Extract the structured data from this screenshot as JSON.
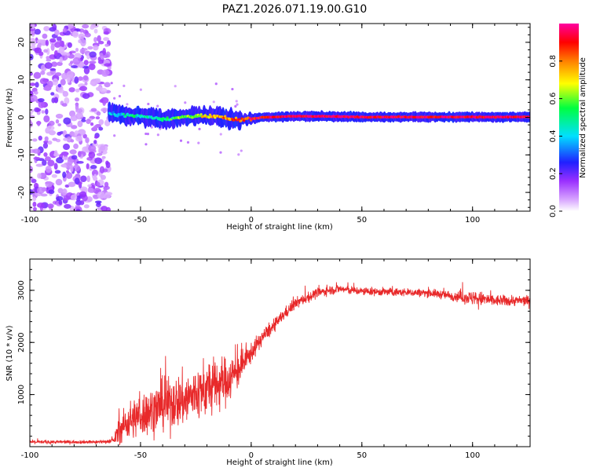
{
  "title": "PAZ1.2026.071.19.00.G10",
  "chart_data": [
    {
      "type": "heatmap",
      "title": "PAZ1.2026.071.19.00.G10",
      "xlabel": "Height of straight line (km)",
      "ylabel": "Frequency (Hz)",
      "xlim": [
        -100,
        126
      ],
      "ylim": [
        -25,
        25
      ],
      "x_ticks": [
        -100,
        -50,
        0,
        50,
        100
      ],
      "x_tick_labels": [
        "-100",
        "-50",
        "0",
        "50",
        "100"
      ],
      "y_ticks": [
        -20,
        -10,
        0,
        10,
        20
      ],
      "y_tick_labels": [
        "-20",
        "-10",
        "0",
        "10",
        "20"
      ],
      "colorbar": {
        "label": "Normalized spectral amplitude",
        "range": [
          0,
          1
        ],
        "ticks": [
          0.0,
          0.2,
          0.4,
          0.6,
          0.8
        ],
        "tick_labels": [
          "0.0",
          "0.2",
          "0.4",
          "0.6",
          "0.8"
        ],
        "colors": [
          "#ffffff",
          "#d9a8ff",
          "#9b30ff",
          "#2020ff",
          "#00e0ff",
          "#00ff40",
          "#ffff00",
          "#ff8000",
          "#ff0000",
          "#ff00a0"
        ]
      },
      "noise_region_x": [
        -100,
        -64
      ],
      "ridge": {
        "x": [
          -64,
          -60,
          -55,
          -50,
          -45,
          -40,
          -35,
          -30,
          -25,
          -20,
          -15,
          -10,
          -5,
          0,
          5,
          10,
          15,
          20,
          25,
          30,
          40,
          50,
          60,
          70,
          80,
          90,
          100,
          110,
          120,
          126
        ],
        "freq": [
          1.0,
          0.8,
          0.5,
          0.3,
          0.0,
          -0.4,
          -0.3,
          0.2,
          0.3,
          0.2,
          0.2,
          -0.5,
          -0.6,
          -0.4,
          0.0,
          0.1,
          0.2,
          0.3,
          0.3,
          0.3,
          0.2,
          0.1,
          0.1,
          0.1,
          0.1,
          0.1,
          0.1,
          0.1,
          0.1,
          0.1
        ],
        "amplitude": [
          0.35,
          0.4,
          0.45,
          0.45,
          0.45,
          0.5,
          0.55,
          0.6,
          0.65,
          0.7,
          0.75,
          0.8,
          0.85,
          0.9,
          0.92,
          0.95,
          0.95,
          0.95,
          0.95,
          0.95,
          0.95,
          0.95,
          0.95,
          0.95,
          0.95,
          0.95,
          0.95,
          0.95,
          0.95,
          0.95
        ]
      }
    },
    {
      "type": "line",
      "xlabel": "Height of straight line (km)",
      "ylabel": "SNR (10 * v/v)",
      "xlim": [
        -100,
        126
      ],
      "ylim": [
        0,
        3600
      ],
      "x_ticks": [
        -100,
        -50,
        0,
        50,
        100
      ],
      "x_tick_labels": [
        "-100",
        "-50",
        "0",
        "50",
        "100"
      ],
      "y_ticks": [
        1000,
        2000,
        3000
      ],
      "y_tick_labels": [
        "1000",
        "2000",
        "3000"
      ],
      "series": [
        {
          "name": "SNR",
          "color": "#e8292a",
          "x": [
            -100,
            -90,
            -80,
            -70,
            -65,
            -62,
            -60,
            -55,
            -50,
            -45,
            -40,
            -35,
            -30,
            -25,
            -20,
            -15,
            -10,
            -5,
            0,
            5,
            10,
            15,
            20,
            25,
            30,
            35,
            40,
            45,
            50,
            60,
            70,
            80,
            90,
            100,
            105,
            110,
            120,
            126
          ],
          "mean": [
            90,
            90,
            90,
            90,
            100,
            120,
            300,
            500,
            600,
            700,
            800,
            850,
            900,
            1000,
            1100,
            1200,
            1300,
            1500,
            1800,
            2100,
            2300,
            2550,
            2750,
            2850,
            2950,
            3000,
            3030,
            3000,
            2980,
            2970,
            2960,
            2950,
            2900,
            2850,
            2830,
            2800,
            2800,
            2800
          ],
          "spread": [
            60,
            60,
            60,
            60,
            60,
            100,
            450,
            650,
            750,
            800,
            850,
            900,
            950,
            950,
            950,
            900,
            800,
            550,
            350,
            250,
            220,
            200,
            200,
            180,
            170,
            160,
            150,
            150,
            140,
            140,
            140,
            140,
            160,
            250,
            250,
            200,
            180,
            180
          ]
        }
      ]
    }
  ]
}
